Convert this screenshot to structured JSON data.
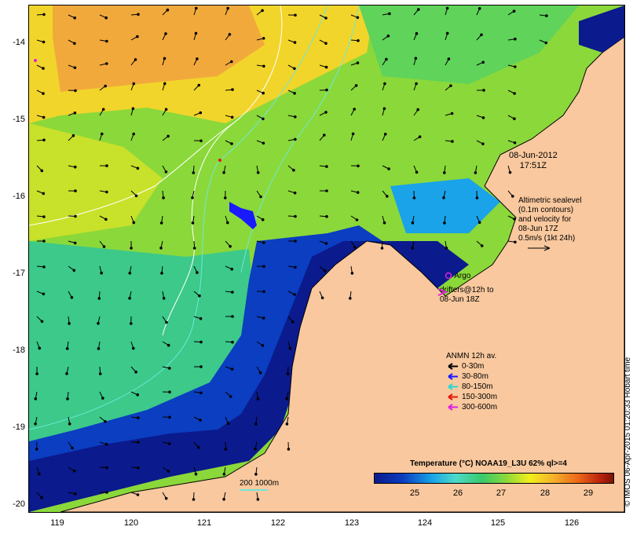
{
  "axes": {
    "y_ticks": [
      "-14",
      "-15",
      "-16",
      "-17",
      "-18",
      "-19",
      "-20"
    ],
    "x_ticks": [
      "119",
      "120",
      "121",
      "122",
      "123",
      "124",
      "125",
      "126"
    ]
  },
  "annotations": {
    "date_line1": "08-Jun-2012",
    "date_line2": "17:51Z",
    "altimetry": [
      "Altimetric sealevel",
      "(0.1m contours)",
      "and velocity for",
      "08-Jun 17Z",
      "0.5m/s (1kt 24h)"
    ],
    "argo_label": "Argo",
    "drifters_line1": "drifters@12h to",
    "drifters_line2": "08-Jun 18Z"
  },
  "anmn_legend": {
    "title": "ANMN 12h av.",
    "items": [
      {
        "label": "0-30m",
        "color": "#000000"
      },
      {
        "label": "30-80m",
        "color": "#1a1aff"
      },
      {
        "label": "80-150m",
        "color": "#28d8d0"
      },
      {
        "label": "150-300m",
        "color": "#e8140c"
      },
      {
        "label": "300-600m",
        "color": "#e020e0"
      }
    ]
  },
  "scale": {
    "label": "200  1000m"
  },
  "colorbar": {
    "title": "Temperature (°C) NOAA19_L3U 62% ql>=4",
    "ticks": [
      "25",
      "26",
      "27",
      "28",
      "29"
    ]
  },
  "credit": "© IMOS 06-Apr-2015 01:20:33 Hobart time",
  "colors": {
    "land": "#f9c89e",
    "warm": "#f2a93c",
    "mid": "#8bd83a",
    "cool": "#0b1a8c"
  }
}
